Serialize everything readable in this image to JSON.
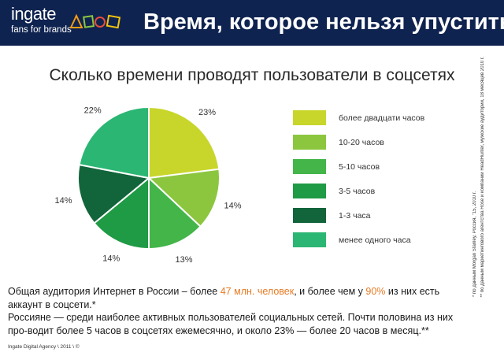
{
  "header": {
    "brand_name": "ingate",
    "brand_tagline": "fans for brands",
    "title": "Время, которое нельзя упустить"
  },
  "chart_data": {
    "type": "pie",
    "title": "Сколько времени проводят пользователи в соцсетях",
    "categories": [
      "более двадцати часов",
      "10-20 часов",
      "5-10 часов",
      "3-5 часов",
      "1-3 часа",
      "менее одного часа"
    ],
    "values": [
      23,
      14,
      13,
      14,
      14,
      22
    ],
    "labels": [
      "23%",
      "14%",
      "13%",
      "14%",
      "14%",
      "22%"
    ],
    "colors": [
      "#c8d62b",
      "#8cc63f",
      "#43b549",
      "#1f9a45",
      "#12653a",
      "#2bb673"
    ],
    "legend_position": "right"
  },
  "sources": {
    "note1": "* по данным Morgan Stanley, Россия, \"15, 2010 г.",
    "note2": "** по данным маркетингового агентства Rose и компании HeadHunter, мужские аудитории, 18 месяцев 2010 г."
  },
  "body": {
    "p1_before": "Общая аудитория Интернет в России – более ",
    "p1_hl1": "47 млн. человек",
    "p1_mid": ", и более чем у ",
    "p1_hl2": "90%",
    "p1_after": " из них есть аккаунт в соцсети.*",
    "p2": "Россияне — среди наиболее активных пользователей социальных сетей. Почти половина из них про-водит более 5 часов в соцсетях ежемесячно, и около 23% — более 20 часов в месяц.**"
  },
  "footer": {
    "text": "Ingate Digital Agency \\ 2011 \\ ©"
  }
}
